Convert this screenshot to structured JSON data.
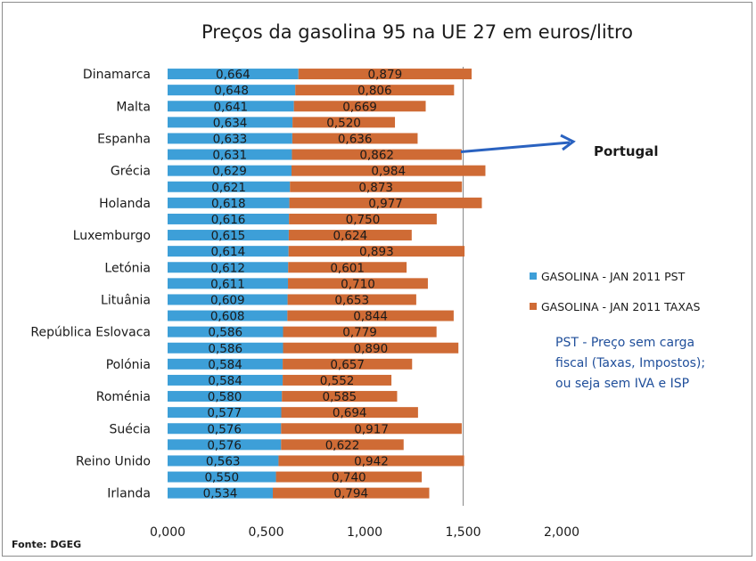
{
  "chart_data": {
    "type": "bar",
    "orientation": "horizontal",
    "stacked": true,
    "title": "Preços da gasolina 95 na UE 27 em euros/litro",
    "categories": [
      "Dinamarca",
      "",
      "Malta",
      "",
      "Espanha",
      "",
      "Grécia",
      "",
      "Holanda",
      "",
      "Luxemburgo",
      "",
      "Letónia",
      "",
      "Lituânia",
      "",
      "República Eslovaca",
      "",
      "Polónia",
      "",
      "Roménia",
      "",
      "Suécia",
      "",
      "Reino Unido",
      "",
      "Irlanda"
    ],
    "series": [
      {
        "name": "GASOLINA - JAN 2011 PST",
        "color": "#3d9fd8",
        "values": [
          0.664,
          0.648,
          0.641,
          0.634,
          0.633,
          0.631,
          0.629,
          0.621,
          0.618,
          0.616,
          0.615,
          0.614,
          0.612,
          0.611,
          0.609,
          0.608,
          0.586,
          0.586,
          0.584,
          0.584,
          0.58,
          0.577,
          0.576,
          0.576,
          0.563,
          0.55,
          0.534
        ],
        "labels": [
          "0,664",
          "0,648",
          "0,641",
          "0,634",
          "0,633",
          "0,631",
          "0,629",
          "0,621",
          "0,618",
          "0,616",
          "0,615",
          "0,614",
          "0,612",
          "0,611",
          "0,609",
          "0,608",
          "0,586",
          "0,586",
          "0,584",
          "0,584",
          "0,580",
          "0,577",
          "0,576",
          "0,576",
          "0,563",
          "0,550",
          "0,534"
        ]
      },
      {
        "name": "GASOLINA - JAN 2011 TAXAS",
        "color": "#cf6b35",
        "values": [
          0.879,
          0.806,
          0.669,
          0.52,
          0.636,
          0.862,
          0.984,
          0.873,
          0.977,
          0.75,
          0.624,
          0.893,
          0.601,
          0.71,
          0.653,
          0.844,
          0.779,
          0.89,
          0.657,
          0.552,
          0.585,
          0.694,
          0.917,
          0.622,
          0.942,
          0.74,
          0.794
        ],
        "labels": [
          "0,879",
          "0,806",
          "0,669",
          "0,520",
          "0,636",
          "0,862",
          "0,984",
          "0,873",
          "0,977",
          "0,750",
          "0,624",
          "0,893",
          "0,601",
          "0,710",
          "0,653",
          "0,844",
          "0,779",
          "0,890",
          "0,657",
          "0,552",
          "0,585",
          "0,694",
          "0,917",
          "0,622",
          "0,942",
          "0,740",
          "0,794"
        ]
      }
    ],
    "x_ticks": [
      "0,000",
      "0,500",
      "1,000",
      "1,500",
      "2,000"
    ],
    "xlim": [
      0,
      2
    ],
    "gridline_at": 1.5,
    "legend_position": "right",
    "annotation": {
      "text": "Portugal",
      "points_to_index": 5,
      "arrow_color": "#2a62c0"
    },
    "note_lines": [
      "PST - Preço sem carga",
      "fiscal (Taxas, Impostos);",
      "ou seja sem IVA e ISP"
    ],
    "source": "Fonte: DGEG"
  }
}
